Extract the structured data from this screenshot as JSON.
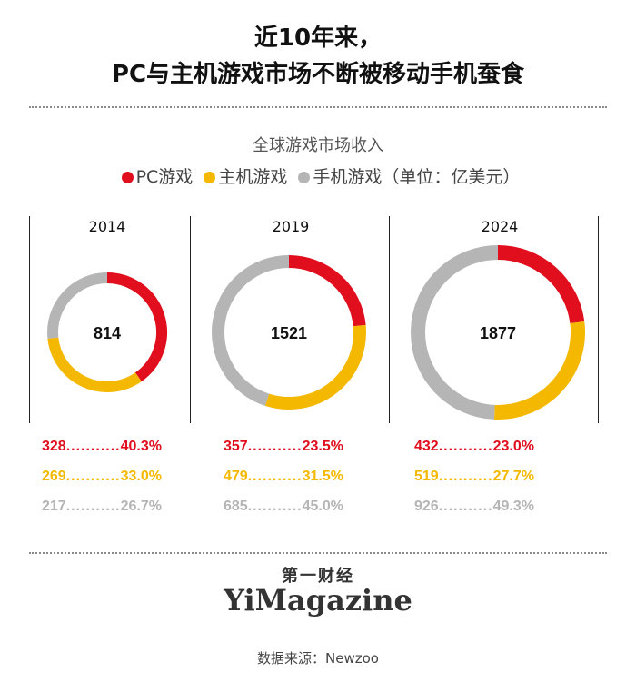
{
  "title_line1": "近10年来，",
  "title_line2": "PC与主机游戏市场不断被移动手机蚕食",
  "brand_cn": "第一财经",
  "brand_en": "YiMagazine",
  "source": "数据来源：Newzoo",
  "colors": {
    "pc": "#e10f1e",
    "console": "#f5b800",
    "mobile": "#b5b5b5"
  },
  "chart_data": {
    "type": "pie",
    "title": "全球游戏市场收入",
    "unit_note": "（单位：亿美元）",
    "legend": [
      "PC游戏",
      "主机游戏",
      "手机游戏"
    ],
    "legend_placement": "top",
    "charts": [
      {
        "year": "2014",
        "total": "814",
        "slices": [
          {
            "name": "PC游戏",
            "value": 328,
            "percent": "40.3%"
          },
          {
            "name": "主机游戏",
            "value": 269,
            "percent": "33.0%"
          },
          {
            "name": "手机游戏",
            "value": 217,
            "percent": "26.7%"
          }
        ]
      },
      {
        "year": "2019",
        "total": "1521",
        "slices": [
          {
            "name": "PC游戏",
            "value": 357,
            "percent": "23.5%"
          },
          {
            "name": "主机游戏",
            "value": 479,
            "percent": "31.5%"
          },
          {
            "name": "手机游戏",
            "value": 685,
            "percent": "45.0%"
          }
        ]
      },
      {
        "year": "2024",
        "total": "1877",
        "slices": [
          {
            "name": "PC游戏",
            "value": 432,
            "percent": "23.0%"
          },
          {
            "name": "主机游戏",
            "value": 519,
            "percent": "27.7%"
          },
          {
            "name": "手机游戏",
            "value": 926,
            "percent": "49.3%"
          }
        ]
      }
    ]
  }
}
